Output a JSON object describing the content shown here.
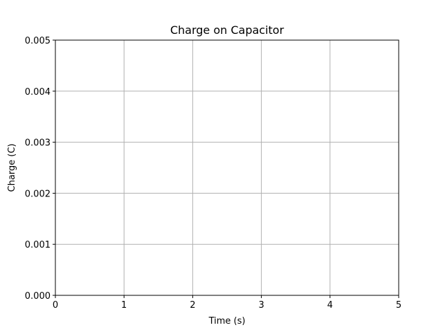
{
  "chart_data": {
    "type": "line",
    "title": "Charge on Capacitor",
    "xlabel": "Time (s)",
    "ylabel": "Charge (C)",
    "xlim": [
      0,
      5
    ],
    "ylim": [
      0,
      0.005
    ],
    "x_ticks": [
      "0",
      "1",
      "2",
      "3",
      "4",
      "5"
    ],
    "y_ticks": [
      "0.000",
      "0.001",
      "0.002",
      "0.003",
      "0.004",
      "0.005"
    ],
    "grid": true,
    "series": []
  }
}
